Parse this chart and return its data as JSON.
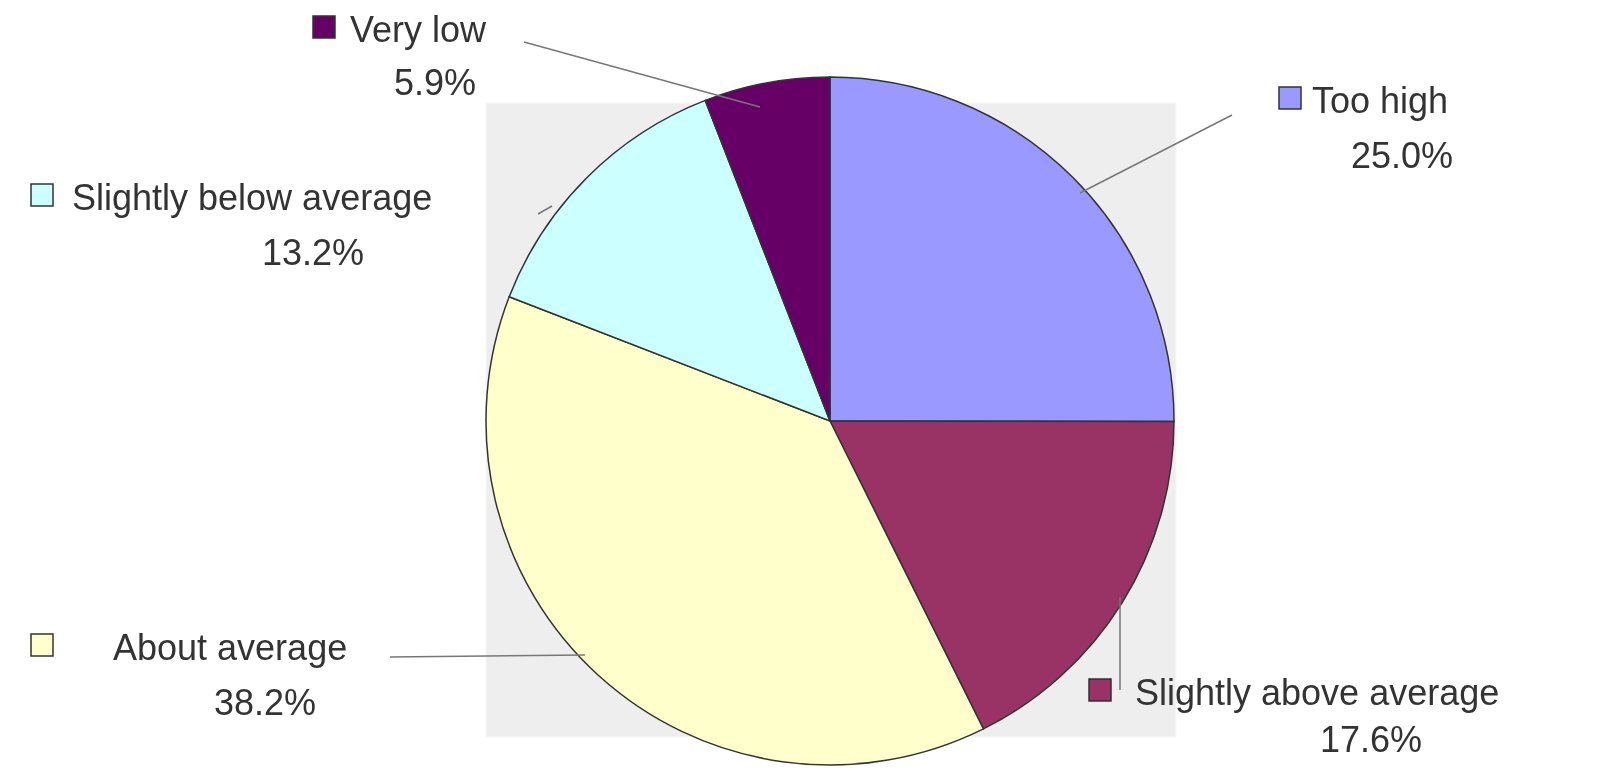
{
  "chart_data": {
    "type": "pie",
    "categories": [
      "Too high",
      "Slightly above average",
      "About average",
      "Slightly below average",
      "Very low"
    ],
    "values": [
      25.0,
      17.6,
      38.2,
      13.2,
      5.9
    ],
    "colors": [
      "#9999ff",
      "#993366",
      "#ffffcc",
      "#ccffff",
      "#660066"
    ],
    "value_labels": [
      "25.0%",
      "17.6%",
      "38.2%",
      "13.2%",
      "5.9%"
    ],
    "legend": "top left"
  }
}
